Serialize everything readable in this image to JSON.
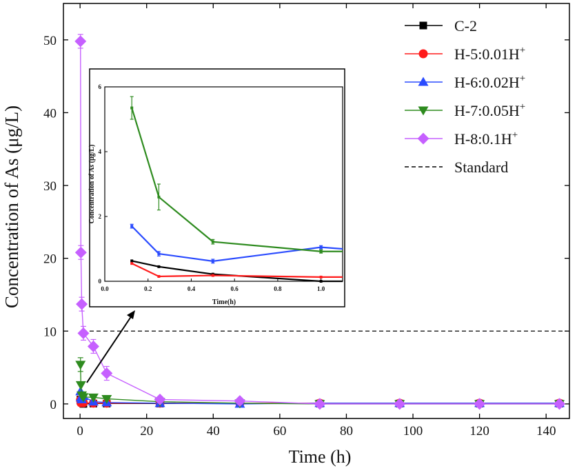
{
  "chart_data": [
    {
      "type": "line",
      "xlabel": "Time (h)",
      "ylabel": "Concentration of As  (μg/L)",
      "xlim": [
        -5,
        147
      ],
      "ylim": [
        -2,
        55
      ],
      "xticks": [
        0,
        20,
        40,
        60,
        80,
        100,
        120,
        140
      ],
      "yticks": [
        0,
        10,
        20,
        30,
        40,
        50
      ],
      "x": [
        0.125,
        0.25,
        0.5,
        1,
        4,
        8,
        24,
        48,
        72,
        96,
        120,
        144
      ],
      "series": [
        {
          "name": "C-2",
          "color": "#000000",
          "marker": "square",
          "values": [
            0.6,
            0.45,
            0.25,
            0.0,
            0.05,
            0.05,
            0.05,
            0.05,
            0.05,
            0.05,
            0.05,
            0.05
          ]
        },
        {
          "name": "H-5:0.01H",
          "sup": "+",
          "color": "#ff1a1a",
          "marker": "circle",
          "values": [
            0.55,
            0.15,
            0.2,
            0.15,
            0.1,
            0.1,
            0.1,
            0.1,
            0.1,
            0.1,
            0.1,
            0.1
          ]
        },
        {
          "name": "H-6:0.02H",
          "sup": "+",
          "color": "#2a4bff",
          "marker": "triangle-up",
          "values": [
            1.7,
            0.85,
            0.6,
            1.05,
            0.3,
            0.2,
            0.1,
            0.0,
            0.1,
            0.1,
            0.1,
            0.1
          ]
        },
        {
          "name": "H-7:0.05H",
          "sup": "+",
          "color": "#2e8b1f",
          "marker": "triangle-down",
          "values": [
            5.4,
            2.6,
            1.2,
            0.95,
            0.9,
            0.7,
            0.3,
            0.1,
            0.0,
            0.0,
            0.0,
            0.0
          ]
        },
        {
          "name": "H-8:0.1H",
          "sup": "+",
          "color": "#c660ff",
          "marker": "diamond",
          "values": [
            49.8,
            20.8,
            13.7,
            9.7,
            7.9,
            4.2,
            0.6,
            0.4,
            0.0,
            0.0,
            0.0,
            0.0
          ]
        }
      ],
      "reference_line": {
        "name": "Standard",
        "y": 10,
        "style": "dashed",
        "color": "#000000"
      },
      "legend": "top-right",
      "grid": false
    },
    {
      "type": "line",
      "inset": true,
      "xlabel": "Time(h)",
      "ylabel": "Concentration of As  (μg/L)",
      "xlim": [
        0,
        1.1
      ],
      "ylim": [
        0,
        6
      ],
      "xticks": [
        "0.0",
        "0.2",
        "0.4",
        "0.6",
        "0.8",
        "1.0"
      ],
      "yticks": [
        0,
        2,
        4,
        6
      ],
      "x": [
        0.125,
        0.25,
        0.5,
        1.0,
        1.1
      ],
      "series": [
        {
          "name": "C-2",
          "color": "#000000",
          "values": [
            0.63,
            0.45,
            0.22,
            -0.05,
            -0.1
          ]
        },
        {
          "name": "H-5:0.01H+",
          "color": "#ff1a1a",
          "values": [
            0.55,
            0.15,
            0.18,
            0.13,
            0.13
          ]
        },
        {
          "name": "H-6:0.02H+",
          "color": "#2a4bff",
          "values": [
            1.7,
            0.85,
            0.62,
            1.05,
            1.0
          ]
        },
        {
          "name": "H-7:0.05H+",
          "color": "#2e8b1f",
          "values": [
            5.35,
            2.6,
            1.22,
            0.92,
            0.92
          ]
        }
      ],
      "errors": {
        "H-7:0.05H+": [
          0.35,
          0.4,
          0.07,
          0.05
        ],
        "H-6:0.02H+": [
          0.06,
          0.07,
          0.06,
          0.05
        ]
      }
    }
  ]
}
